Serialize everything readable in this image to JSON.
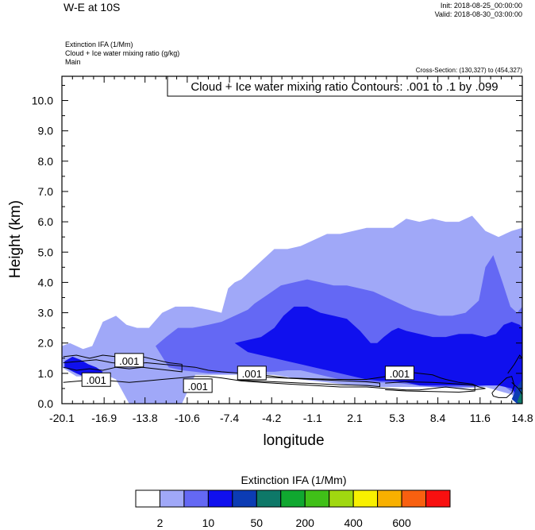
{
  "header": {
    "title": "W-E at 10S",
    "init": "Init: 2018-08-25_00:00:00",
    "valid": "Valid: 2018-08-30_03:00:00",
    "field1": "Extinction IFA   (1/Mm)",
    "field2": "Cloud + Ice water mixing ratio   (g/kg)",
    "field3": "Main",
    "cross_section": "Cross-Section: (130,327) to (454,327)"
  },
  "chart_data": {
    "type": "heatmap",
    "title": "W-E at 10S",
    "xlabel": "longitude",
    "ylabel": "Height (km)",
    "xlim": [
      -20.1,
      14.8
    ],
    "ylim": [
      0,
      10.8
    ],
    "x_ticks": [
      "-20.1",
      "-16.9",
      "-13.8",
      "-10.6",
      "-7.4",
      "-4.2",
      "-1.1",
      "2.1",
      "5.3",
      "8.4",
      "11.6",
      "14.8"
    ],
    "y_ticks": [
      "0.0",
      "1.0",
      "2.0",
      "3.0",
      "4.0",
      "5.0",
      "6.0",
      "7.0",
      "8.0",
      "9.0",
      "10.0"
    ],
    "contour_note": "Cloud + Ice water mixing ratio Contours: .001 to .1 by .099",
    "contour_labels": [
      {
        "text": ".001",
        "lon": -17.5,
        "height": 0.78
      },
      {
        "text": ".001",
        "lon": -15.0,
        "height": 1.42
      },
      {
        "text": ".001",
        "lon": -9.8,
        "height": 0.58
      },
      {
        "text": ".001",
        "lon": -5.7,
        "height": 1.0
      },
      {
        "text": ".001",
        "lon": 5.5,
        "height": 1.0
      }
    ],
    "colorbar": {
      "title": "Extinction IFA  (1/Mm)",
      "colors": [
        "#ffffff",
        "#a0a8f8",
        "#6468f4",
        "#1010ee",
        "#0c3cb4",
        "#0e7868",
        "#10a830",
        "#40c018",
        "#a0d810",
        "#f8f000",
        "#f8b000",
        "#f86010",
        "#f81010"
      ],
      "labels": [
        "2",
        "10",
        "50",
        "200",
        "400",
        "600"
      ]
    },
    "regions": [
      {
        "level": 1,
        "lon": [
          -20.1,
          -19.5,
          -18.5,
          -17.8,
          -17.0,
          -16.0,
          -15.2,
          -14.4,
          -13.5,
          -12.5,
          -11.5,
          -10.2,
          -9.0,
          -8.0,
          -7.5,
          -7.0,
          -6.5,
          -6.0,
          -5.0,
          -4.0,
          -3.0,
          -2.0,
          -1.0,
          0.0,
          1.0,
          2.0,
          3.0,
          4.0,
          5.0,
          6.0,
          7.0,
          8.0,
          9.0,
          10.0,
          11.0,
          12.0,
          13.0,
          14.0,
          14.8,
          14.8,
          14.0,
          12.0,
          10.0,
          8.0,
          6.0,
          4.0,
          2.0,
          0.0,
          -2.0,
          -4.0,
          -6.0,
          -8.0,
          -10.0,
          -11.0,
          -12.0,
          -13.0,
          -14.0,
          -15.0,
          -16.0,
          -17.0,
          -18.0,
          -19.0,
          -20.1
        ],
        "height": [
          1.9,
          2.0,
          1.8,
          1.9,
          2.7,
          2.9,
          2.6,
          2.5,
          2.5,
          3.0,
          3.2,
          3.2,
          3.1,
          3.0,
          3.8,
          4.0,
          4.1,
          4.3,
          4.7,
          5.1,
          5.1,
          5.2,
          5.4,
          5.6,
          5.6,
          5.7,
          5.8,
          5.8,
          5.8,
          6.1,
          6.0,
          6.1,
          6.0,
          6.0,
          6.2,
          5.7,
          5.5,
          5.7,
          5.8,
          0.0,
          0.3,
          0.55,
          0.5,
          0.55,
          0.55,
          0.55,
          0.6,
          0.7,
          0.8,
          0.95,
          0.95,
          0.95,
          0.95,
          0.0,
          0.0,
          0.0,
          0.0,
          0.0,
          0.8,
          1.0,
          0.9,
          0.9,
          1.2
        ]
      },
      {
        "level": 2,
        "lon": [
          -13.0,
          -12.2,
          -11.3,
          -10.2,
          -9.0,
          -8.0,
          -7.0,
          -6.0,
          -5.5,
          -4.5,
          -3.5,
          -2.5,
          -1.5,
          -0.5,
          0.5,
          1.5,
          2.5,
          3.5,
          4.5,
          5.5,
          6.5,
          7.5,
          8.5,
          9.5,
          10.5,
          11.5,
          12.0,
          12.6,
          13.3,
          13.9,
          14.4,
          14.8,
          14.8,
          14.0,
          13.0,
          12.0,
          11.0,
          10.0,
          9.0,
          8.0,
          7.0,
          6.0,
          5.0,
          4.0,
          3.0,
          2.0,
          1.0,
          0.0,
          -1.0,
          -2.0,
          -3.0,
          -4.0,
          -5.0,
          -6.0,
          -7.0,
          -8.0,
          -9.0,
          -10.0,
          -11.0,
          -12.0,
          -13.0
        ],
        "height": [
          1.9,
          2.2,
          2.5,
          2.5,
          2.6,
          2.7,
          2.9,
          3.1,
          3.3,
          3.6,
          3.9,
          4.0,
          4.1,
          4.0,
          3.9,
          3.9,
          3.8,
          3.7,
          3.5,
          3.3,
          3.1,
          3.0,
          2.9,
          2.9,
          3.0,
          3.4,
          4.5,
          4.9,
          4.0,
          3.2,
          3.0,
          3.2,
          0.0,
          0.4,
          0.7,
          0.6,
          0.55,
          0.55,
          0.55,
          0.55,
          0.6,
          0.65,
          0.7,
          0.7,
          0.7,
          0.75,
          0.8,
          0.9,
          1.0,
          1.1,
          1.1,
          1.05,
          1.05,
          1.0,
          1.0,
          1.0,
          1.0,
          1.05,
          1.1,
          1.2,
          1.9
        ]
      },
      {
        "level": 3,
        "lon": [
          -7.0,
          -6.0,
          -5.0,
          -4.0,
          -3.3,
          -2.5,
          -1.5,
          -0.5,
          0.5,
          1.5,
          2.5,
          3.3,
          3.8,
          4.3,
          4.9,
          5.4,
          6.0,
          7.0,
          8.0,
          9.0,
          10.0,
          11.0,
          12.0,
          12.8,
          13.4,
          14.0,
          14.6,
          14.8,
          14.8,
          14.0,
          13.0,
          12.0,
          11.0,
          10.0,
          9.0,
          8.0,
          7.0,
          6.0,
          5.0,
          4.0,
          3.0,
          2.0,
          1.0,
          0.0,
          -1.0,
          -2.0,
          -3.0,
          -4.0,
          -5.0,
          -6.0,
          -7.0
        ],
        "height": [
          2.0,
          2.1,
          2.2,
          2.5,
          2.9,
          3.2,
          3.2,
          3.0,
          2.9,
          2.8,
          2.4,
          2.0,
          2.0,
          2.2,
          2.4,
          2.5,
          2.4,
          2.3,
          2.2,
          2.2,
          2.3,
          2.3,
          2.2,
          2.3,
          2.6,
          2.7,
          2.6,
          2.5,
          0.0,
          0.5,
          0.6,
          0.6,
          0.6,
          0.6,
          0.6,
          0.6,
          0.6,
          0.7,
          0.75,
          0.75,
          0.8,
          0.9,
          1.0,
          1.1,
          1.2,
          1.3,
          1.4,
          1.5,
          1.6,
          1.7,
          2.0
        ]
      },
      {
        "level": 3,
        "lon": [
          -19.9,
          -19.3,
          -18.7,
          -18.1,
          -17.5,
          -17.0,
          -17.4,
          -18.2,
          -19.0,
          -19.9
        ],
        "height": [
          1.4,
          1.55,
          1.45,
          1.3,
          1.2,
          1.05,
          0.9,
          0.85,
          1.0,
          1.2
        ]
      },
      {
        "level": 4,
        "lon": [
          14.0,
          14.4,
          14.8,
          14.8,
          14.4
        ],
        "height": [
          0.15,
          0.55,
          0.8,
          0.0,
          0.0
        ]
      },
      {
        "level": 5,
        "lon": [
          14.4,
          14.8,
          14.8
        ],
        "height": [
          0.05,
          0.5,
          0.0
        ]
      }
    ],
    "contours": [
      {
        "lon": [
          -20.0,
          -18.7,
          -17.5,
          -16.3,
          -15.0,
          -13.7,
          -12.5,
          -11.2,
          -10.0,
          -9.5,
          -9.0,
          -8.0,
          -6.5,
          -5.0,
          -3.0,
          -1.0,
          1.0,
          3.0,
          4.5,
          5.5,
          6.0,
          7.0,
          8.0,
          8.6,
          9.0,
          10.0,
          11.0,
          11.5,
          12.0,
          11.0,
          10.0,
          9.0,
          8.0,
          7.0,
          6.0,
          4.5,
          3.0,
          1.0,
          -1.0,
          -3.0,
          -5.0,
          -6.5,
          -8.0,
          -9.0,
          -10.0,
          -11.2,
          -12.5,
          -13.7,
          -15.0,
          -16.3,
          -17.5,
          -18.7,
          -20.0
        ],
        "height": [
          1.35,
          1.4,
          1.45,
          1.35,
          1.3,
          1.35,
          1.3,
          1.25,
          1.2,
          1.15,
          1.1,
          1.05,
          1.0,
          0.95,
          0.85,
          0.82,
          0.8,
          0.8,
          0.9,
          1.0,
          1.05,
          1.0,
          0.95,
          0.85,
          0.8,
          0.7,
          0.65,
          0.55,
          0.5,
          0.45,
          0.5,
          0.55,
          0.5,
          0.45,
          0.45,
          0.5,
          0.55,
          0.55,
          0.6,
          0.65,
          0.7,
          0.75,
          0.85,
          0.9,
          0.9,
          0.85,
          0.8,
          0.75,
          0.7,
          0.75,
          0.8,
          0.75,
          0.7
        ]
      },
      {
        "lon": [
          -20.0,
          -19.0,
          -18.0,
          -17.0,
          -16.0,
          -15.0,
          -14.0,
          -13.0,
          -12.0,
          -11.0,
          -11.0,
          -12.0,
          -13.0,
          -14.0,
          -15.0,
          -16.0,
          -17.0,
          -18.0,
          -19.0,
          -20.0
        ],
        "height": [
          1.55,
          1.6,
          1.5,
          1.6,
          1.55,
          1.5,
          1.55,
          1.45,
          1.35,
          1.3,
          1.05,
          1.1,
          1.15,
          1.2,
          1.15,
          1.2,
          1.1,
          1.15,
          1.1,
          1.2
        ]
      },
      {
        "lon": [
          -6.8,
          -5.0,
          -3.0,
          -1.0,
          1.0,
          3.0,
          4.0,
          4.0,
          3.0,
          1.0,
          -1.0,
          -3.0,
          -5.0,
          -6.8
        ],
        "height": [
          0.92,
          0.88,
          0.84,
          0.8,
          0.76,
          0.72,
          0.68,
          0.56,
          0.6,
          0.62,
          0.66,
          0.7,
          0.74,
          0.78
        ]
      },
      {
        "lon": [
          4.4,
          6.0,
          8.0,
          10.0,
          11.2,
          11.2,
          10.0,
          8.0,
          6.0,
          4.4
        ],
        "height": [
          0.68,
          0.72,
          0.7,
          0.65,
          0.6,
          0.42,
          0.38,
          0.4,
          0.42,
          0.46
        ]
      },
      {
        "lon": [
          12.5,
          13.0,
          13.6,
          14.0,
          14.2,
          14.0,
          13.6,
          13.0,
          12.6,
          12.5
        ],
        "height": [
          0.35,
          0.6,
          0.85,
          0.9,
          0.6,
          0.35,
          0.2,
          0.2,
          0.25,
          0.35
        ]
      },
      {
        "lon": [
          13.7,
          14.2,
          14.6,
          14.8,
          14.8,
          14.5,
          14.0
        ],
        "height": [
          1.0,
          1.3,
          1.6,
          1.5,
          0.3,
          0.5,
          0.7
        ]
      }
    ]
  }
}
